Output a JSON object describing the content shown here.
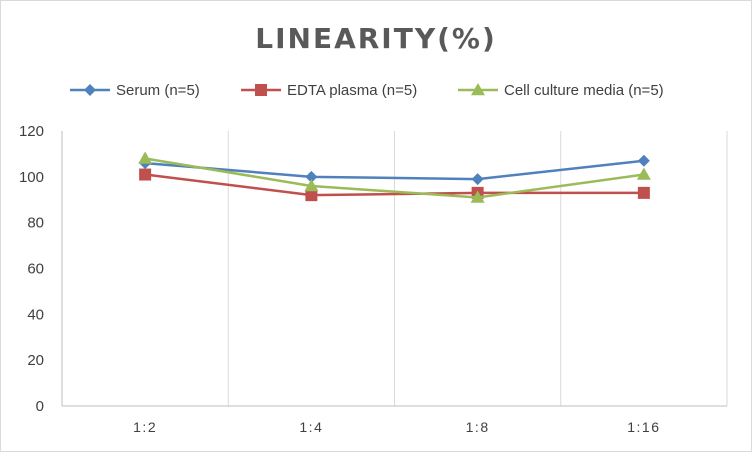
{
  "chart_data": {
    "type": "line",
    "title": "LINEARITY(%)",
    "xlabel": "",
    "ylabel": "",
    "categories": [
      "1:2",
      "1:4",
      "1:8",
      "1:16"
    ],
    "ylim": [
      0,
      120
    ],
    "yticks": [
      0,
      20,
      40,
      60,
      80,
      100,
      120
    ],
    "grid": "vertical gridlines between categories",
    "legend_position": "top",
    "series": [
      {
        "name": "Serum (n=5)",
        "values": [
          106,
          100,
          99,
          107
        ],
        "color": "#4f81bd",
        "marker": "diamond"
      },
      {
        "name": "EDTA plasma (n=5)",
        "values": [
          101,
          92,
          93,
          93
        ],
        "color": "#c0504d",
        "marker": "square"
      },
      {
        "name": "Cell culture media (n=5)",
        "values": [
          108,
          96,
          91,
          101
        ],
        "color": "#9bbb59",
        "marker": "triangle"
      }
    ]
  }
}
